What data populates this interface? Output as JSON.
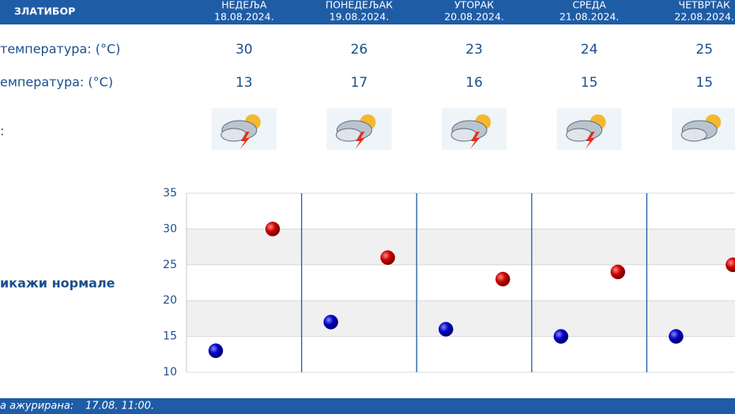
{
  "header": {
    "location": "ЗЛАТИБОР",
    "days": [
      {
        "name": "НЕДЕЉА",
        "date": "18.08.2024."
      },
      {
        "name": "ПОНЕДЕЉАК",
        "date": "19.08.2024."
      },
      {
        "name": "УТОРАК",
        "date": "20.08.2024."
      },
      {
        "name": "СРЕДА",
        "date": "21.08.2024."
      },
      {
        "name": "ЧЕТВРТАК",
        "date": "22.08.2024."
      }
    ]
  },
  "rows": {
    "max_label": "температура: (°C)",
    "min_label": "емпература: (°C)",
    "icon_label": ":"
  },
  "link": "икажи нормале",
  "updated": {
    "label": "а ажурирана:",
    "value": "17.08. 11:00."
  },
  "chart_data": {
    "type": "dot",
    "series": [
      {
        "color": "#c00000",
        "values": [
          30,
          26,
          23,
          24,
          25
        ]
      },
      {
        "color": "#0000c0",
        "values": [
          13,
          17,
          16,
          15,
          15
        ]
      }
    ],
    "ylim": [
      10,
      35
    ],
    "yticks": [
      10,
      15,
      20,
      25,
      30,
      35
    ],
    "grid": true
  }
}
